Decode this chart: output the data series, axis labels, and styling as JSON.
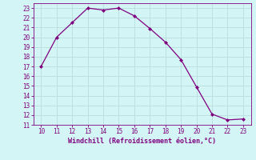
{
  "x": [
    10,
    11,
    12,
    13,
    14,
    15,
    16,
    17,
    18,
    19,
    20,
    21,
    22,
    23
  ],
  "y": [
    17,
    20,
    21.5,
    23,
    22.8,
    23,
    22.2,
    20.9,
    19.5,
    17.7,
    14.9,
    12.1,
    11.5,
    11.6
  ],
  "line_color": "#800080",
  "marker": "D",
  "marker_size": 2,
  "bg_color": "#d4f5f5",
  "grid_color": "#b8dede",
  "xlabel": "Windchill (Refroidissement éolien,°C)",
  "xlabel_color": "#800080",
  "tick_color": "#800080",
  "xlim": [
    9.5,
    23.5
  ],
  "ylim": [
    11,
    23.5
  ],
  "xticks": [
    10,
    11,
    12,
    13,
    14,
    15,
    16,
    17,
    18,
    19,
    20,
    21,
    22,
    23
  ],
  "yticks": [
    11,
    12,
    13,
    14,
    15,
    16,
    17,
    18,
    19,
    20,
    21,
    22,
    23
  ]
}
